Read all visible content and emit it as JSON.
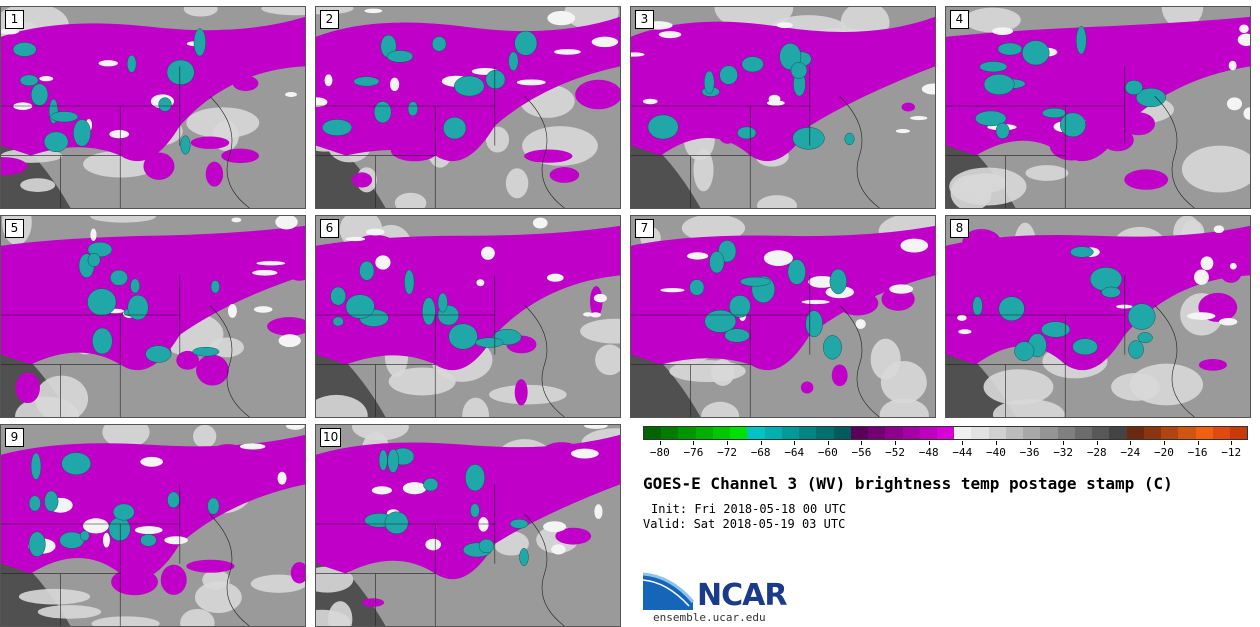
{
  "panels": [
    {
      "label": "1"
    },
    {
      "label": "2"
    },
    {
      "label": "3"
    },
    {
      "label": "4"
    },
    {
      "label": "5"
    },
    {
      "label": "6"
    },
    {
      "label": "7"
    },
    {
      "label": "8"
    },
    {
      "label": "9"
    },
    {
      "label": "10"
    }
  ],
  "colorbar": {
    "colors": [
      "#006400",
      "#007d00",
      "#009600",
      "#00af00",
      "#00c800",
      "#00e100",
      "#00c4c4",
      "#00b0b0",
      "#009a9a",
      "#008585",
      "#007070",
      "#005c5c",
      "#5a005a",
      "#730073",
      "#8c008c",
      "#a500a5",
      "#be00be",
      "#d700d7",
      "#f0f0f0",
      "#e2e2e2",
      "#d0d0d0",
      "#bcbcbc",
      "#a8a8a8",
      "#949494",
      "#808080",
      "#6c6c6c",
      "#585858",
      "#444444",
      "#6b2a10",
      "#8a3510",
      "#b04510",
      "#d05510",
      "#f06010",
      "#e04a10",
      "#c83a08"
    ],
    "tick_labels": [
      "-80",
      "-76",
      "-72",
      "-68",
      "-64",
      "-60",
      "-56",
      "-52",
      "-48",
      "-44",
      "-40",
      "-36",
      "-32",
      "-28",
      "-24",
      "-20",
      "-16",
      "-12"
    ],
    "min": -82,
    "max": -10
  },
  "title": "GOES-E Channel 3 (WV) brightness temp postage stamp (C)",
  "init": "Init: Fri 2018-05-18 00 UTC",
  "valid": "Valid: Sat 2018-05-19 03 UTC",
  "logo": {
    "name": "NCAR",
    "url": "ensemble.ucar.edu",
    "colors": {
      "blue": "#1a3a8a",
      "light": "#5aa0d8"
    }
  },
  "map_colors": {
    "moist": "#c000c8",
    "deep": "#20a8a8",
    "gray": "#9a9a9a",
    "light": "#d8d8d8",
    "dark": "#505050"
  }
}
